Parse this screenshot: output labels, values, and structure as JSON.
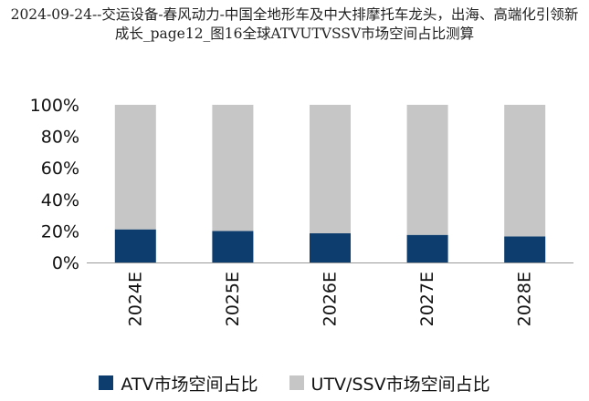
{
  "chart_data": {
    "type": "bar",
    "stacked": true,
    "title": "2024-09-24--交运设备-春风动力-中国全地形车及中大排摩托车龙头，出海、高端化引领新成长_page12_图16全球ATVUTVSSV市场空间占比测算",
    "categories": [
      "2024E",
      "2025E",
      "2026E",
      "2027E",
      "2028E"
    ],
    "series": [
      {
        "name": "ATV市场空间占比",
        "values": [
          21,
          20,
          18.5,
          17.5,
          16.5
        ],
        "color": "#0d3d6e"
      },
      {
        "name": "UTV/SSV市场空间占比",
        "values": [
          79,
          80,
          81.5,
          82.5,
          83.5
        ],
        "color": "#c6c6c6"
      }
    ],
    "ylim": [
      0,
      100
    ],
    "yticks": [
      "0%",
      "20%",
      "40%",
      "60%",
      "80%",
      "100%"
    ],
    "grid": false,
    "legend_position": "bottom"
  }
}
